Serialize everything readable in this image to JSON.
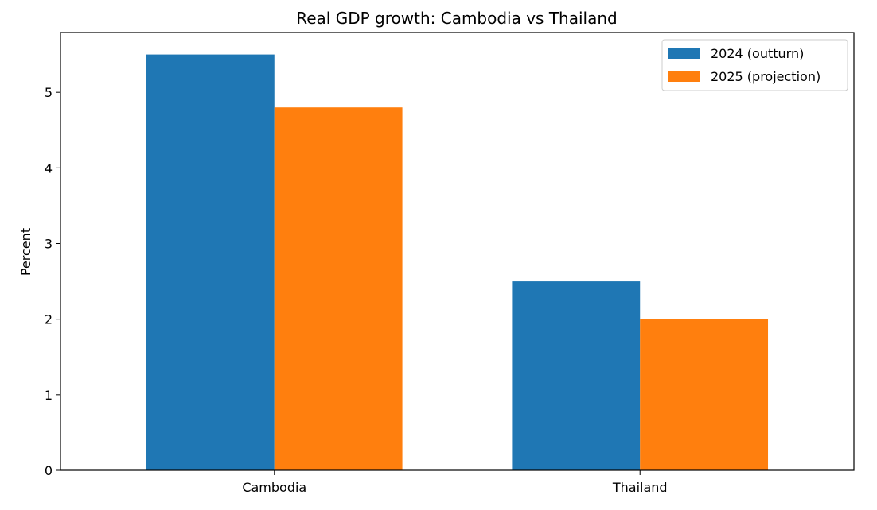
{
  "chart_data": {
    "type": "bar",
    "title": "Real GDP growth: Cambodia vs Thailand",
    "xlabel": "",
    "ylabel": "Percent",
    "categories": [
      "Cambodia",
      "Thailand"
    ],
    "series": [
      {
        "name": "2024 (outturn)",
        "values": [
          5.5,
          2.5
        ],
        "color": "#1f77b4"
      },
      {
        "name": "2025 (projection)",
        "values": [
          4.8,
          2.0
        ],
        "color": "#ff7f0e"
      }
    ],
    "ylim": [
      0,
      5.79
    ],
    "yticks": [
      0,
      1,
      2,
      3,
      4,
      5
    ],
    "grid": false,
    "legend_position": "top-right"
  }
}
